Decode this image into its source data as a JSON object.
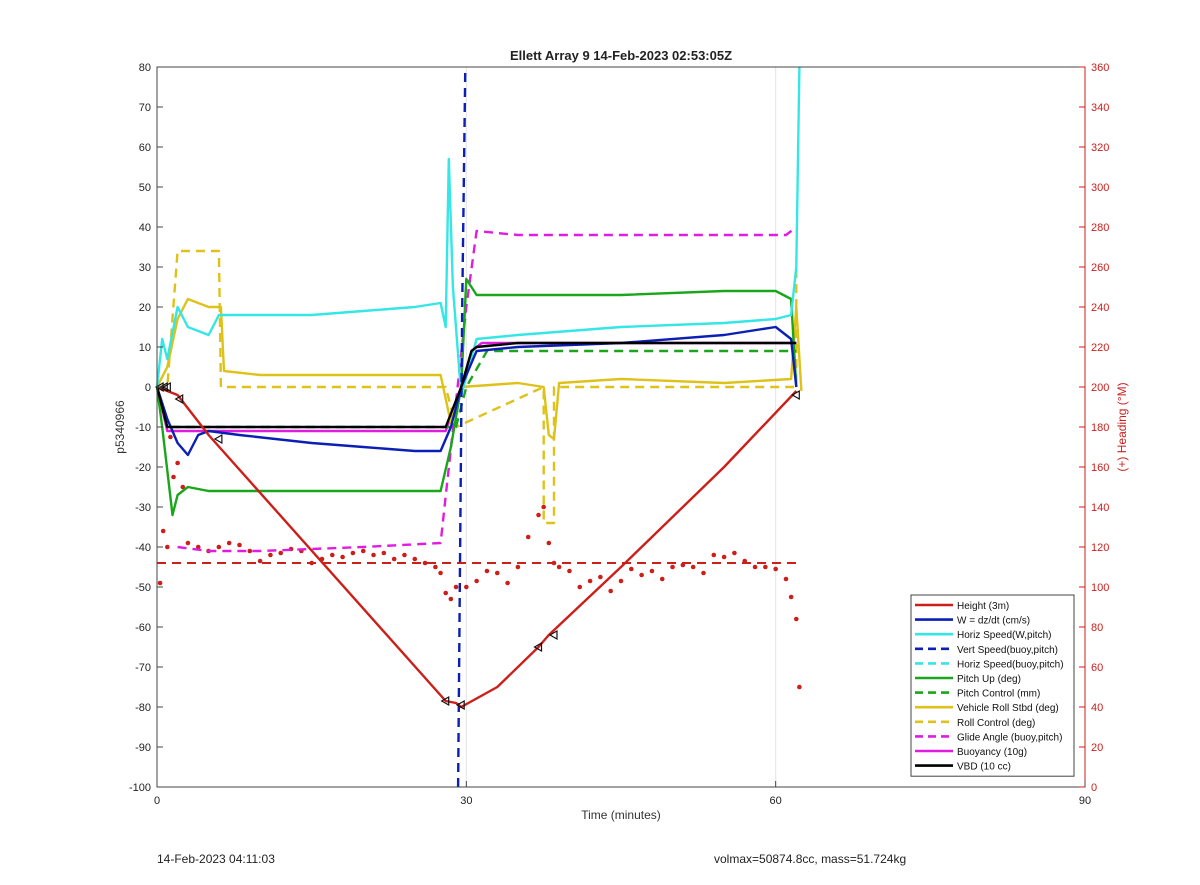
{
  "chart_data": {
    "type": "line",
    "title": "Ellett Array 9 14-Feb-2023 02:53:05Z",
    "xlabel": "Time (minutes)",
    "ylabel": "p5340966",
    "y2label": "(+) Heading (°M)",
    "xlim": [
      0,
      90
    ],
    "ylim": [
      -100,
      80
    ],
    "y2lim": [
      0,
      360
    ],
    "xticks": [
      0,
      30,
      60,
      90
    ],
    "yticks": [
      -100,
      -90,
      -80,
      -70,
      -60,
      -50,
      -40,
      -30,
      -20,
      -10,
      0,
      10,
      20,
      30,
      40,
      50,
      60,
      70,
      80
    ],
    "y2ticks": [
      0,
      20,
      40,
      60,
      80,
      100,
      120,
      140,
      160,
      180,
      200,
      220,
      240,
      260,
      280,
      300,
      320,
      340,
      360
    ],
    "grid": "x-only",
    "legend_position": "bottom-right",
    "series": [
      {
        "name": "Height (3m)",
        "color": "#cc1f1a",
        "style": "solid",
        "x": [
          0,
          1,
          2,
          5,
          28,
          29,
          29.5,
          33,
          37,
          38,
          45,
          55,
          62
        ],
        "y": [
          0,
          -1,
          -2,
          -12,
          -78.5,
          -79,
          -80,
          -75,
          -65,
          -62,
          -45,
          -20,
          -1
        ]
      },
      {
        "name": "W = dz/dt (cm/s)",
        "color": "#0b1fb5",
        "style": "solid",
        "x": [
          0,
          1,
          2,
          3,
          4,
          5,
          8,
          15,
          20,
          25,
          27.5,
          28.5,
          29.5,
          31,
          35,
          45,
          55,
          60,
          61.5,
          62
        ],
        "y": [
          0,
          -8,
          -14,
          -17,
          -12,
          -11,
          -12,
          -14,
          -15,
          -16,
          -16,
          -10,
          0,
          9,
          10,
          11,
          13,
          15,
          12,
          0
        ]
      },
      {
        "name": "Horiz Speed(W,pitch)",
        "color": "#35e6e6",
        "style": "solid",
        "x": [
          0,
          0.5,
          1,
          2,
          3,
          5,
          6,
          8,
          15,
          20,
          25,
          27.5,
          28,
          28.3,
          28.7,
          29.5,
          31,
          35,
          45,
          55,
          60,
          61.5,
          62,
          62.3
        ],
        "y": [
          0,
          12,
          7,
          20,
          15,
          13,
          18,
          18,
          18,
          19,
          20,
          21,
          15,
          57,
          25,
          -2,
          12,
          13,
          15,
          16,
          17,
          18,
          30,
          80
        ]
      },
      {
        "name": "Vert Speed(buoy,pitch)",
        "color": "#0b1fb5",
        "style": "dash",
        "x": [
          29.2,
          29.2,
          29.6,
          29.9
        ],
        "y": [
          -100,
          -100,
          20,
          80
        ]
      },
      {
        "name": "Horiz Speed(buoy,pitch)",
        "color": "#35e6e6",
        "style": "dash",
        "x": [],
        "y": []
      },
      {
        "name": "Pitch Up (deg)",
        "color": "#1aa61a",
        "style": "solid",
        "x": [
          0,
          0.5,
          1.5,
          2,
          3,
          5,
          10,
          20,
          27.5,
          28.5,
          29.5,
          30,
          31,
          35,
          45,
          55,
          60,
          61.5,
          62
        ],
        "y": [
          0,
          -10,
          -32,
          -27,
          -25,
          -26,
          -26,
          -26,
          -26,
          -15,
          0,
          27,
          23,
          23,
          23,
          24,
          24,
          22,
          0
        ]
      },
      {
        "name": "Pitch Control (mm)",
        "color": "#1aa61a",
        "style": "dash",
        "x": [
          0,
          1,
          29,
          30,
          32,
          62
        ],
        "y": [
          0,
          -10,
          -10,
          0,
          9,
          9
        ]
      },
      {
        "name": "Vehicle Roll Stbd (deg)",
        "color": "#dec21a",
        "style": "solid",
        "x": [
          0,
          1,
          2,
          3,
          5,
          6.2,
          6.5,
          10,
          20,
          27.5,
          28.5,
          29.5,
          35,
          37.5,
          38,
          38.5,
          39,
          45,
          55,
          61.5,
          62,
          62.5
        ],
        "y": [
          0,
          5,
          17,
          22,
          20,
          20,
          4,
          3,
          3,
          3,
          -9,
          0,
          1,
          0,
          -12,
          -13,
          1,
          2,
          1,
          2,
          20,
          -1
        ]
      },
      {
        "name": "Roll Control (deg)",
        "color": "#dec21a",
        "style": "dash",
        "x": [
          0,
          1,
          2,
          6,
          6.2,
          28,
          29,
          37.5,
          37.5,
          38.5,
          38.5,
          62,
          62
        ],
        "y": [
          0,
          0,
          34,
          34,
          0,
          0,
          -10,
          0,
          -34,
          -34,
          0,
          0,
          30
        ]
      },
      {
        "name": "Glide Angle (buoy,pitch)",
        "color": "#e01ce0",
        "style": "dash",
        "x": [
          2,
          5,
          10,
          20,
          27.5,
          30,
          31,
          35,
          45,
          55,
          61,
          62
        ],
        "y": [
          -40,
          -41,
          -41,
          -40,
          -39,
          20,
          39,
          38,
          38,
          38,
          38,
          40
        ]
      },
      {
        "name": "Buoyancy (10g)",
        "color": "#e01ce0",
        "style": "solid",
        "x": [
          0,
          1,
          10,
          28,
          29.5,
          30.5,
          31.5,
          62
        ],
        "y": [
          0,
          -11,
          -11,
          -11,
          0,
          9,
          11,
          11
        ]
      },
      {
        "name": "VBD (10 cc)",
        "color": "#000000",
        "style": "solid",
        "x": [
          0,
          0.5,
          1,
          28,
          29.5,
          30.5,
          31,
          35,
          62
        ],
        "y": [
          0,
          -5,
          -10,
          -10,
          0,
          9,
          10,
          11,
          11
        ]
      }
    ],
    "heading": {
      "name": "Heading",
      "color": "#cc1f1a",
      "axis": "right",
      "points_x": [
        0.3,
        0.6,
        1,
        1.3,
        1.6,
        2,
        2.5,
        3,
        4,
        5,
        6,
        7,
        8,
        9,
        10,
        11,
        12,
        13,
        14,
        15,
        16,
        17,
        18,
        19,
        20,
        21,
        22,
        23,
        24,
        25,
        26,
        27,
        27.5,
        28,
        28.5,
        29,
        30,
        31,
        32,
        33,
        34,
        35,
        36,
        37,
        37.5,
        38,
        38.5,
        39,
        40,
        41,
        42,
        43,
        44,
        45,
        46,
        47,
        48,
        49,
        50,
        51,
        52,
        53,
        54,
        55,
        56,
        57,
        58,
        59,
        60,
        61,
        61.5,
        62,
        62.3
      ],
      "points_y": [
        102,
        128,
        120,
        175,
        155,
        162,
        150,
        122,
        120,
        118,
        120,
        122,
        121,
        118,
        113,
        116,
        117,
        119,
        118,
        112,
        114,
        116,
        115,
        117,
        118,
        116,
        117,
        114,
        116,
        114,
        112,
        110,
        107,
        97,
        94,
        100,
        100,
        103,
        108,
        107,
        102,
        110,
        125,
        136,
        140,
        122,
        112,
        110,
        108,
        100,
        103,
        105,
        98,
        103,
        109,
        106,
        108,
        104,
        110,
        111,
        110,
        107,
        116,
        115,
        117,
        113,
        110,
        110,
        109,
        104,
        95,
        84,
        50
      ],
      "mean": 112
    },
    "markers": {
      "x": [
        0.3,
        0.7,
        1,
        2.2,
        6,
        28,
        29.5,
        37,
        38.5,
        62
      ],
      "y": [
        0,
        0,
        0,
        -3,
        -13,
        -78.5,
        -79.5,
        -65,
        -62,
        -2
      ]
    }
  },
  "footer": {
    "left": "14-Feb-2023 04:11:03",
    "right": "volmax=50874.8cc, mass=51.724kg"
  }
}
